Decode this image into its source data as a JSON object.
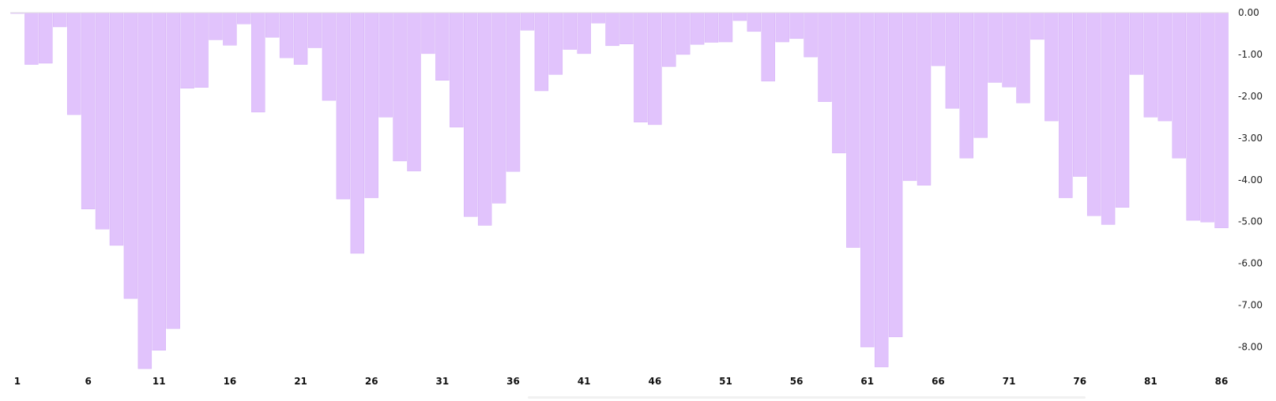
{
  "chart_data": {
    "type": "bar",
    "x": [
      1,
      2,
      3,
      4,
      5,
      6,
      7,
      8,
      9,
      10,
      11,
      12,
      13,
      14,
      15,
      16,
      17,
      18,
      19,
      20,
      21,
      22,
      23,
      24,
      25,
      26,
      27,
      28,
      29,
      30,
      31,
      32,
      33,
      34,
      35,
      36,
      37,
      38,
      39,
      40,
      41,
      42,
      43,
      44,
      45,
      46,
      47,
      48,
      49,
      50,
      51,
      52,
      53,
      54,
      55,
      56,
      57,
      58,
      59,
      60,
      61,
      62,
      63,
      64,
      65,
      66,
      67,
      68,
      69,
      70,
      71,
      72,
      73,
      74,
      75,
      76,
      77,
      78,
      79,
      80,
      81,
      82,
      83,
      84,
      85,
      86
    ],
    "values": [
      -0.02,
      -1.24,
      -1.21,
      -0.34,
      -2.44,
      -4.7,
      -5.18,
      -5.57,
      -6.84,
      -8.52,
      -8.08,
      -7.56,
      -1.81,
      -1.79,
      -0.65,
      -0.78,
      -0.27,
      -2.38,
      -0.59,
      -1.08,
      -1.24,
      -0.84,
      -2.1,
      -4.46,
      -5.76,
      -4.43,
      -2.5,
      -3.55,
      -3.79,
      -0.98,
      -1.62,
      -2.74,
      -4.88,
      -5.09,
      -4.56,
      -3.8,
      -0.42,
      -1.87,
      -1.48,
      -0.88,
      -0.98,
      -0.25,
      -0.79,
      -0.75,
      -2.62,
      -2.68,
      -1.29,
      -1.0,
      -0.76,
      -0.71,
      -0.7,
      -0.19,
      -0.45,
      -1.64,
      -0.7,
      -0.62,
      -1.06,
      -2.13,
      -3.36,
      -5.62,
      -8.0,
      -8.48,
      -7.76,
      -4.02,
      -4.13,
      -1.27,
      -2.29,
      -3.48,
      -2.99,
      -1.67,
      -1.78,
      -2.16,
      -0.64,
      -2.59,
      -4.43,
      -3.92,
      -4.86,
      -5.07,
      -4.66,
      -1.48,
      -2.5,
      -2.59,
      -3.48,
      -4.97,
      -5.01,
      -5.15
    ],
    "ylim": [
      -8.5,
      0
    ],
    "yticks": [
      "0.00",
      "-1.00",
      "-2.00",
      "-3.00",
      "-4.00",
      "-5.00",
      "-6.00",
      "-7.00",
      "-8.00"
    ],
    "ytick_values": [
      0,
      -1,
      -2,
      -3,
      -4,
      -5,
      -6,
      -7,
      -8
    ],
    "xticks": [
      "1",
      "6",
      "11",
      "16",
      "21",
      "26",
      "31",
      "36",
      "41",
      "46",
      "51",
      "56",
      "61",
      "66",
      "71",
      "76",
      "81",
      "86"
    ],
    "xtick_values": [
      1,
      6,
      11,
      16,
      21,
      26,
      31,
      36,
      41,
      46,
      51,
      56,
      61,
      66,
      71,
      76,
      81,
      86
    ],
    "title": "",
    "xlabel": "",
    "ylabel": "",
    "grid": false,
    "legend": "none",
    "y_axis_side": "right",
    "bar_color": "#e1c3fc",
    "axis_color": "#e0e0e0"
  }
}
